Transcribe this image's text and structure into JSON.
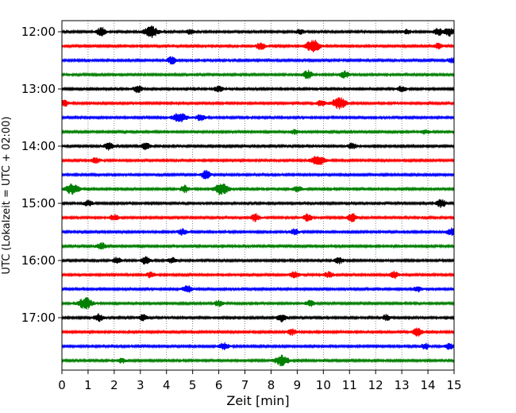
{
  "chart_data": {
    "type": "line",
    "subtype": "helicorder-seismogram",
    "title": "",
    "xlabel": "Zeit  [min]",
    "ylabel": "UTC (Lokalzeit = UTC + 02:00)",
    "xlim": [
      0,
      15
    ],
    "x_ticks": [
      0,
      1,
      2,
      3,
      4,
      5,
      6,
      7,
      8,
      9,
      10,
      11,
      12,
      13,
      14,
      15
    ],
    "x_tick_labels": [
      "0",
      "1",
      "2",
      "3",
      "4",
      "5",
      "6",
      "7",
      "8",
      "9",
      "10",
      "11",
      "12",
      "13",
      "14",
      "15"
    ],
    "vertical_grid": "dotted",
    "trace_interval_minutes": 15,
    "trace_colors_cycle": [
      "#000000",
      "#ff0000",
      "#0000ff",
      "#008000"
    ],
    "y_tick_labels": [
      "12:00",
      "13:00",
      "14:00",
      "15:00",
      "16:00",
      "17:00"
    ],
    "traces": [
      {
        "start": "12:00",
        "color": "#000000",
        "events": [
          [
            1.5,
            0.6
          ],
          [
            3.4,
            0.8
          ],
          [
            4.9,
            0.3
          ],
          [
            9.1,
            0.3
          ],
          [
            13.2,
            0.3
          ],
          [
            14.4,
            0.5
          ],
          [
            14.8,
            0.6
          ]
        ]
      },
      {
        "start": "12:15",
        "color": "#ff0000",
        "events": [
          [
            7.6,
            0.5
          ],
          [
            9.6,
            0.9
          ],
          [
            14.4,
            0.4
          ]
        ]
      },
      {
        "start": "12:30",
        "color": "#0000ff",
        "events": [
          [
            4.2,
            0.5
          ],
          [
            14.9,
            0.3
          ]
        ]
      },
      {
        "start": "12:45",
        "color": "#008000",
        "events": [
          [
            9.4,
            0.6
          ],
          [
            10.8,
            0.5
          ]
        ]
      },
      {
        "start": "13:00",
        "color": "#000000",
        "events": [
          [
            2.9,
            0.5
          ],
          [
            6.0,
            0.4
          ],
          [
            13.0,
            0.4
          ]
        ]
      },
      {
        "start": "13:15",
        "color": "#ff0000",
        "events": [
          [
            0.1,
            0.4
          ],
          [
            9.9,
            0.4
          ],
          [
            10.6,
            0.8
          ]
        ]
      },
      {
        "start": "13:30",
        "color": "#0000ff",
        "events": [
          [
            4.5,
            0.7
          ],
          [
            5.3,
            0.4
          ]
        ]
      },
      {
        "start": "13:45",
        "color": "#008000",
        "events": [
          [
            8.9,
            0.3
          ],
          [
            13.9,
            0.3
          ]
        ]
      },
      {
        "start": "14:00",
        "color": "#000000",
        "events": [
          [
            1.8,
            0.5
          ],
          [
            3.2,
            0.5
          ],
          [
            11.1,
            0.4
          ]
        ]
      },
      {
        "start": "14:15",
        "color": "#ff0000",
        "events": [
          [
            1.3,
            0.4
          ],
          [
            9.8,
            0.7
          ]
        ]
      },
      {
        "start": "14:30",
        "color": "#0000ff",
        "events": [
          [
            5.5,
            0.6
          ]
        ]
      },
      {
        "start": "14:45",
        "color": "#008000",
        "events": [
          [
            0.4,
            0.7
          ],
          [
            4.7,
            0.5
          ],
          [
            6.1,
            0.8
          ],
          [
            9.0,
            0.4
          ]
        ]
      },
      {
        "start": "15:00",
        "color": "#000000",
        "events": [
          [
            1.0,
            0.4
          ],
          [
            14.5,
            0.6
          ]
        ]
      },
      {
        "start": "15:15",
        "color": "#ff0000",
        "events": [
          [
            2.0,
            0.4
          ],
          [
            7.4,
            0.5
          ],
          [
            9.4,
            0.5
          ],
          [
            11.1,
            0.6
          ]
        ]
      },
      {
        "start": "15:30",
        "color": "#0000ff",
        "events": [
          [
            4.6,
            0.4
          ],
          [
            8.9,
            0.4
          ],
          [
            14.9,
            0.5
          ]
        ]
      },
      {
        "start": "15:45",
        "color": "#008000",
        "events": [
          [
            1.5,
            0.5
          ]
        ]
      },
      {
        "start": "16:00",
        "color": "#000000",
        "events": [
          [
            2.1,
            0.4
          ],
          [
            3.2,
            0.5
          ],
          [
            4.2,
            0.4
          ],
          [
            10.6,
            0.4
          ]
        ]
      },
      {
        "start": "16:15",
        "color": "#ff0000",
        "events": [
          [
            3.4,
            0.4
          ],
          [
            8.9,
            0.5
          ],
          [
            10.2,
            0.4
          ],
          [
            12.7,
            0.5
          ]
        ]
      },
      {
        "start": "16:30",
        "color": "#0000ff",
        "events": [
          [
            4.8,
            0.5
          ],
          [
            13.6,
            0.4
          ]
        ]
      },
      {
        "start": "16:45",
        "color": "#008000",
        "events": [
          [
            0.9,
            0.8
          ],
          [
            6.0,
            0.4
          ],
          [
            9.5,
            0.4
          ]
        ]
      },
      {
        "start": "17:00",
        "color": "#000000",
        "events": [
          [
            1.4,
            0.5
          ],
          [
            3.1,
            0.4
          ],
          [
            8.4,
            0.5
          ],
          [
            12.4,
            0.4
          ]
        ]
      },
      {
        "start": "17:15",
        "color": "#ff0000",
        "events": [
          [
            8.8,
            0.4
          ],
          [
            13.6,
            0.6
          ]
        ]
      },
      {
        "start": "17:30",
        "color": "#0000ff",
        "events": [
          [
            6.2,
            0.5
          ],
          [
            13.9,
            0.4
          ],
          [
            14.8,
            0.4
          ]
        ]
      },
      {
        "start": "17:45",
        "color": "#008000",
        "events": [
          [
            2.3,
            0.3
          ],
          [
            8.4,
            0.7
          ]
        ]
      }
    ]
  }
}
